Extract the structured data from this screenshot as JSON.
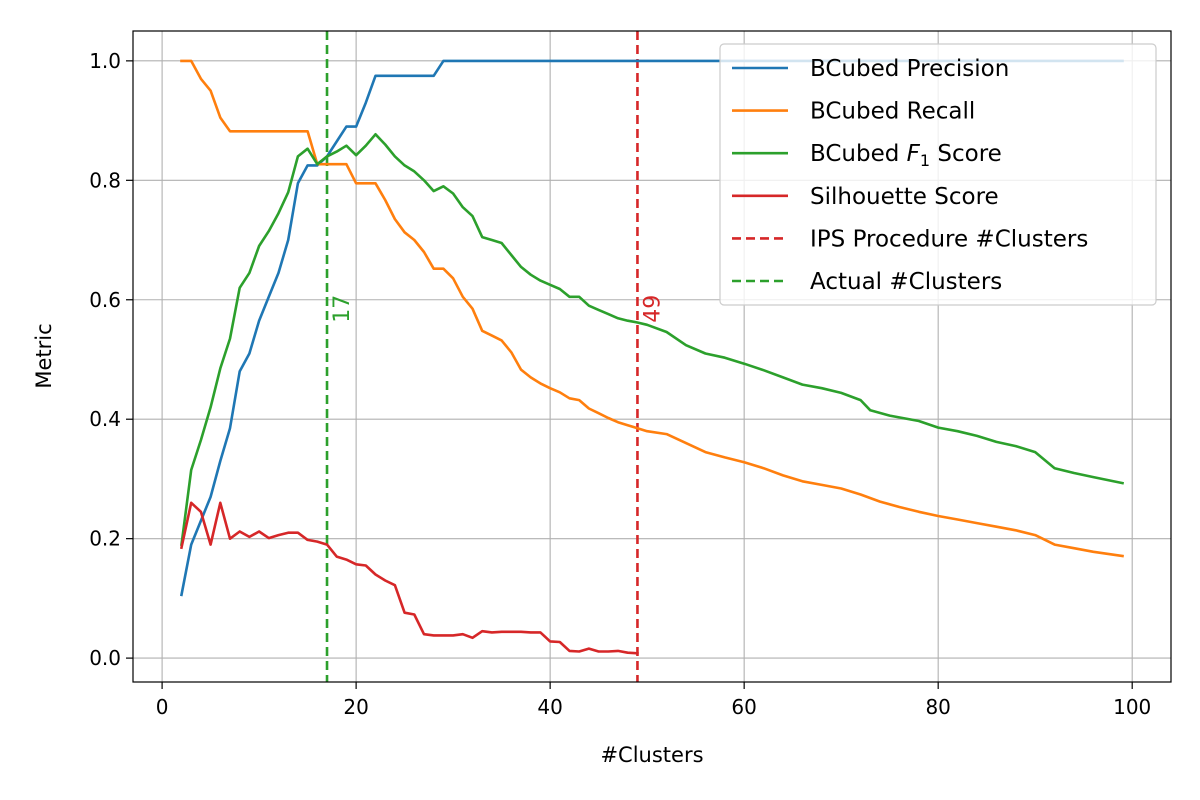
{
  "chart_data": {
    "type": "line",
    "title": "",
    "xlabel": "#Clusters",
    "ylabel": "Metric",
    "xlim": [
      -3,
      104
    ],
    "ylim": [
      -0.04,
      1.05
    ],
    "xticks": [
      0,
      20,
      40,
      60,
      80,
      100
    ],
    "yticks": [
      0.0,
      0.2,
      0.4,
      0.6,
      0.8,
      1.0
    ],
    "xtick_labels": [
      "0",
      "20",
      "40",
      "60",
      "80",
      "100"
    ],
    "ytick_labels": [
      "0.0",
      "0.2",
      "0.4",
      "0.6",
      "0.8",
      "1.0"
    ],
    "grid": true,
    "legend_position": "top-right",
    "series": [
      {
        "name": "BCubed Precision",
        "color": "#1f77b4",
        "x": [
          2,
          3,
          4,
          5,
          6,
          7,
          8,
          9,
          10,
          11,
          12,
          13,
          14,
          15,
          16,
          17,
          18,
          19,
          20,
          21,
          22,
          23,
          24,
          25,
          26,
          27,
          28,
          29,
          30,
          40,
          50,
          60,
          70,
          80,
          90,
          99
        ],
        "values": [
          0.106,
          0.19,
          0.23,
          0.27,
          0.33,
          0.385,
          0.48,
          0.51,
          0.565,
          0.605,
          0.645,
          0.7,
          0.795,
          0.825,
          0.825,
          0.84,
          0.865,
          0.89,
          0.89,
          0.93,
          0.975,
          0.975,
          0.975,
          0.975,
          0.975,
          0.975,
          0.975,
          1.0,
          1.0,
          1.0,
          1.0,
          1.0,
          1.0,
          1.0,
          1.0,
          1.0
        ]
      },
      {
        "name": "BCubed Recall",
        "color": "#ff7f0e",
        "x": [
          2,
          3,
          4,
          5,
          6,
          7,
          8,
          9,
          10,
          11,
          12,
          13,
          14,
          15,
          16,
          17,
          18,
          19,
          20,
          21,
          22,
          23,
          24,
          25,
          26,
          27,
          28,
          29,
          30,
          31,
          32,
          33,
          34,
          35,
          36,
          37,
          38,
          39,
          40,
          41,
          42,
          43,
          44,
          45,
          46,
          47,
          48,
          49,
          50,
          52,
          54,
          56,
          58,
          60,
          62,
          64,
          66,
          68,
          70,
          72,
          74,
          76,
          78,
          80,
          82,
          84,
          86,
          88,
          90,
          92,
          94,
          96,
          99
        ],
        "values": [
          1.0,
          1.0,
          0.97,
          0.95,
          0.905,
          0.882,
          0.882,
          0.882,
          0.882,
          0.882,
          0.882,
          0.882,
          0.882,
          0.882,
          0.827,
          0.827,
          0.827,
          0.827,
          0.795,
          0.795,
          0.795,
          0.767,
          0.735,
          0.713,
          0.7,
          0.68,
          0.652,
          0.652,
          0.636,
          0.605,
          0.585,
          0.548,
          0.54,
          0.532,
          0.512,
          0.483,
          0.47,
          0.46,
          0.452,
          0.445,
          0.435,
          0.432,
          0.418,
          0.41,
          0.402,
          0.395,
          0.39,
          0.385,
          0.38,
          0.375,
          0.36,
          0.345,
          0.336,
          0.328,
          0.318,
          0.306,
          0.296,
          0.29,
          0.284,
          0.274,
          0.262,
          0.253,
          0.245,
          0.238,
          0.232,
          0.226,
          0.22,
          0.214,
          0.206,
          0.19,
          0.184,
          0.178,
          0.171
        ]
      },
      {
        "name": "BCubed F1 Score",
        "color": "#2ca02c",
        "x": [
          2,
          3,
          4,
          5,
          6,
          7,
          8,
          9,
          10,
          11,
          12,
          13,
          14,
          15,
          16,
          17,
          18,
          19,
          20,
          21,
          22,
          23,
          24,
          25,
          26,
          27,
          28,
          29,
          30,
          31,
          32,
          33,
          34,
          35,
          36,
          37,
          38,
          39,
          40,
          41,
          42,
          43,
          44,
          45,
          46,
          47,
          48,
          49,
          50,
          52,
          54,
          56,
          58,
          60,
          62,
          64,
          66,
          68,
          70,
          72,
          73,
          75,
          78,
          80,
          82,
          84,
          86,
          88,
          90,
          92,
          94,
          96,
          99
        ],
        "values": [
          0.19,
          0.315,
          0.365,
          0.42,
          0.485,
          0.535,
          0.62,
          0.645,
          0.69,
          0.715,
          0.745,
          0.78,
          0.84,
          0.853,
          0.827,
          0.84,
          0.848,
          0.858,
          0.842,
          0.858,
          0.877,
          0.86,
          0.84,
          0.825,
          0.815,
          0.8,
          0.782,
          0.79,
          0.778,
          0.755,
          0.74,
          0.705,
          0.7,
          0.695,
          0.675,
          0.655,
          0.642,
          0.632,
          0.625,
          0.618,
          0.605,
          0.605,
          0.59,
          0.583,
          0.576,
          0.569,
          0.565,
          0.562,
          0.558,
          0.546,
          0.524,
          0.51,
          0.503,
          0.493,
          0.482,
          0.47,
          0.458,
          0.452,
          0.444,
          0.432,
          0.415,
          0.406,
          0.397,
          0.386,
          0.38,
          0.372,
          0.362,
          0.355,
          0.345,
          0.318,
          0.31,
          0.303,
          0.293
        ]
      },
      {
        "name": "Silhouette Score",
        "color": "#d62728",
        "x": [
          2,
          3,
          4,
          5,
          6,
          7,
          8,
          9,
          10,
          11,
          12,
          13,
          14,
          15,
          16,
          17,
          18,
          19,
          20,
          21,
          22,
          23,
          24,
          25,
          26,
          27,
          28,
          29,
          30,
          31,
          32,
          33,
          34,
          35,
          36,
          37,
          38,
          39,
          40,
          41,
          42,
          43,
          44,
          45,
          46,
          47,
          48,
          49
        ],
        "values": [
          0.185,
          0.26,
          0.245,
          0.19,
          0.26,
          0.2,
          0.212,
          0.203,
          0.212,
          0.201,
          0.206,
          0.21,
          0.21,
          0.198,
          0.195,
          0.19,
          0.17,
          0.165,
          0.157,
          0.155,
          0.14,
          0.13,
          0.122,
          0.076,
          0.073,
          0.04,
          0.038,
          0.038,
          0.038,
          0.04,
          0.034,
          0.045,
          0.043,
          0.044,
          0.044,
          0.044,
          0.043,
          0.043,
          0.028,
          0.027,
          0.012,
          0.011,
          0.016,
          0.011,
          0.011,
          0.012,
          0.009,
          0.008
        ]
      }
    ],
    "vertical_lines": [
      {
        "name": "IPS Procedure #Clusters",
        "x": 49,
        "label": "49",
        "color": "#d62728",
        "label_y": 0.585
      },
      {
        "name": "Actual #Clusters",
        "x": 17,
        "label": "17",
        "color": "#2ca02c",
        "label_y": 0.585
      }
    ],
    "legend": [
      {
        "label": "BCubed Precision",
        "color": "#1f77b4",
        "style": "solid"
      },
      {
        "label": "BCubed Recall",
        "color": "#ff7f0e",
        "style": "solid"
      },
      {
        "label": "BCubed F1 Score",
        "color": "#2ca02c",
        "style": "solid",
        "display_prefix": "BCubed ",
        "display_italic": "F",
        "display_sub": "1",
        "display_suffix": " Score"
      },
      {
        "label": "Silhouette Score",
        "color": "#d62728",
        "style": "solid"
      },
      {
        "label": "IPS Procedure #Clusters",
        "color": "#d62728",
        "style": "dashed"
      },
      {
        "label": "Actual #Clusters",
        "color": "#2ca02c",
        "style": "dashed"
      }
    ]
  }
}
